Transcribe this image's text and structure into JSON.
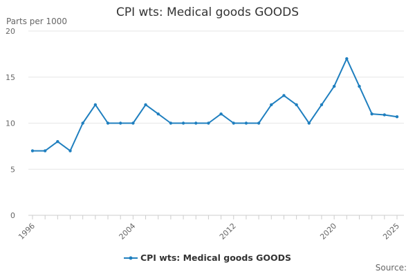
{
  "chart_data": {
    "type": "line",
    "title": "CPI wts: Medical goods GOODS",
    "ylabel": "Parts per 1000",
    "xlabel": "",
    "x": [
      1996,
      1997,
      1998,
      1999,
      2000,
      2001,
      2002,
      2003,
      2004,
      2005,
      2006,
      2007,
      2008,
      2009,
      2010,
      2011,
      2012,
      2013,
      2014,
      2015,
      2016,
      2017,
      2018,
      2019,
      2020,
      2021,
      2022,
      2023,
      2024,
      2025
    ],
    "series": [
      {
        "name": "CPI wts: Medical goods GOODS",
        "color": "#1f7fbf",
        "values": [
          7,
          7,
          8,
          7,
          10,
          12,
          10,
          10,
          10,
          12,
          11,
          10,
          10,
          10,
          10,
          11,
          10,
          10,
          10,
          12,
          13,
          12,
          10,
          12,
          14,
          17,
          14,
          11,
          10.9,
          10.7
        ]
      }
    ],
    "ylim": [
      0,
      20
    ],
    "xlim": [
      1996,
      2025
    ],
    "yticks": [
      0,
      5,
      10,
      15,
      20
    ],
    "xticks": [
      1996,
      2004,
      2012,
      2020,
      2025
    ],
    "grid": "horizontal",
    "legend": "bottom-center"
  },
  "footer": {
    "source_label": "Source:"
  }
}
